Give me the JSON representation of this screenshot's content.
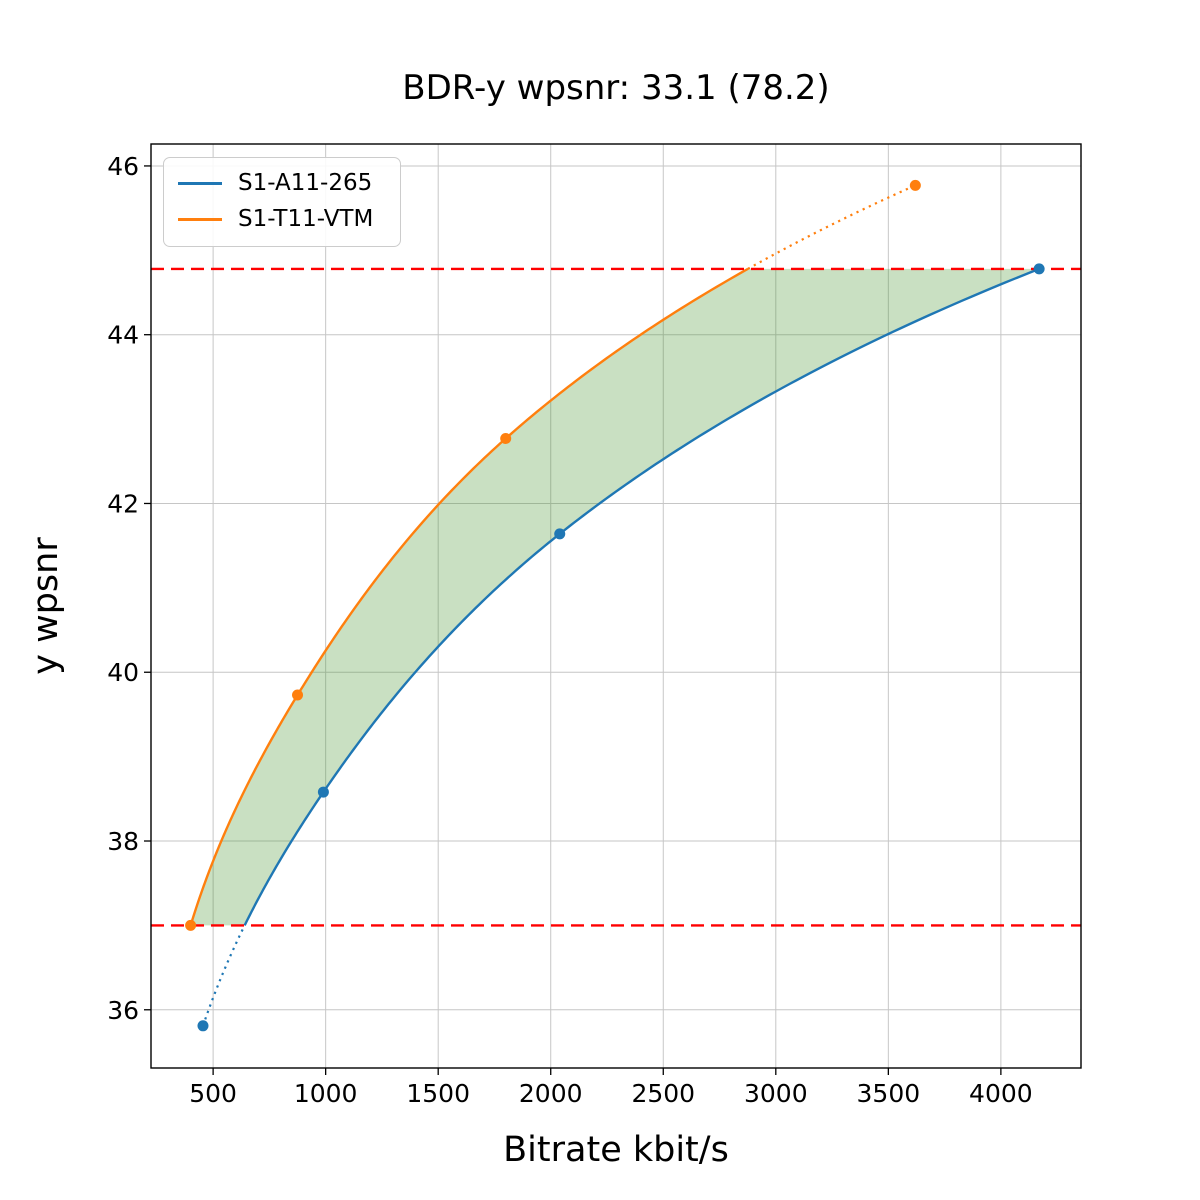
{
  "title": "BDR-y wpsnr: 33.1 (78.2)",
  "xlabel": "Bitrate kbit/s",
  "ylabel": "y wpsnr",
  "legend": {
    "position": "upper left",
    "items": [
      {
        "label": "S1-A11-265",
        "color": "#1f77b4"
      },
      {
        "label": "S1-T11-VTM",
        "color": "#ff7f0e"
      }
    ]
  },
  "chart_data": {
    "type": "line",
    "title": "BDR-y wpsnr: 33.1 (78.2)",
    "xlabel": "Bitrate kbit/s",
    "ylabel": "y wpsnr",
    "xlim": [
      224,
      4356
    ],
    "ylim": [
      35.31,
      46.26
    ],
    "xticks": [
      500,
      1000,
      1500,
      2000,
      2500,
      3000,
      3500,
      4000
    ],
    "yticks": [
      36,
      38,
      40,
      42,
      44,
      46
    ],
    "grid": true,
    "grid_color": "#c6c6c6",
    "interpolation": "pchip-on-log-bitrate",
    "series": [
      {
        "name": "S1-A11-265",
        "color": "#1f77b4",
        "points": [
          [
            455,
            35.81
          ],
          [
            990,
            38.58
          ],
          [
            2040,
            41.64
          ],
          [
            4170,
            44.78
          ]
        ]
      },
      {
        "name": "S1-T11-VTM",
        "color": "#ff7f0e",
        "points": [
          [
            400,
            37.0
          ],
          [
            875,
            39.73
          ],
          [
            1800,
            42.77
          ],
          [
            3620,
            45.77
          ]
        ]
      }
    ],
    "hlines": [
      {
        "y": 44.78,
        "color": "#ff0000",
        "style": "dashed"
      },
      {
        "y": 37.0,
        "color": "#ff0000",
        "style": "dashed"
      }
    ],
    "overlap_band": {
      "y_min": 37.0,
      "y_max": 44.78,
      "fill_color": "rgba(60,145,35,0.28)",
      "note": "area between the two curves clipped to [y_min, y_max]; curve parts outside band drawn dotted"
    }
  }
}
